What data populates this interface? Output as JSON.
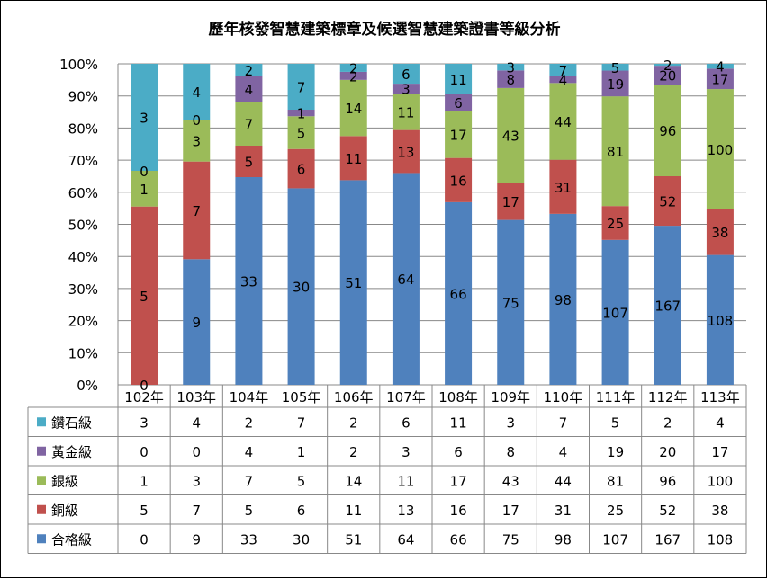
{
  "chart_data": {
    "type": "bar",
    "stacked": "percent",
    "title": "歷年核發智慧建築標章及候選智慧建築證書等級分析",
    "categories": [
      "102年",
      "103年",
      "104年",
      "105年",
      "106年",
      "107年",
      "108年",
      "109年",
      "110年",
      "111年",
      "112年",
      "113年"
    ],
    "series": [
      {
        "name": "合格級",
        "color": "#4f81bd",
        "values": [
          0,
          9,
          33,
          30,
          51,
          64,
          66,
          75,
          98,
          107,
          167,
          108
        ]
      },
      {
        "name": "銅級",
        "color": "#c0504d",
        "values": [
          5,
          7,
          5,
          6,
          11,
          13,
          16,
          17,
          31,
          25,
          52,
          38
        ]
      },
      {
        "name": "銀級",
        "color": "#9bbb59",
        "values": [
          1,
          3,
          7,
          5,
          14,
          11,
          17,
          43,
          44,
          81,
          96,
          100
        ]
      },
      {
        "name": "黃金級",
        "color": "#8064a2",
        "values": [
          0,
          0,
          4,
          1,
          2,
          3,
          6,
          8,
          4,
          19,
          20,
          17
        ]
      },
      {
        "name": "鑽石級",
        "color": "#4bacc6",
        "values": [
          3,
          4,
          2,
          7,
          2,
          6,
          11,
          3,
          7,
          5,
          2,
          4
        ]
      }
    ],
    "table_order": [
      "鑽石級",
      "黃金級",
      "銀級",
      "銅級",
      "合格級"
    ],
    "yticks": [
      "0%",
      "10%",
      "20%",
      "30%",
      "40%",
      "50%",
      "60%",
      "70%",
      "80%",
      "90%",
      "100%"
    ],
    "ylim": [
      0,
      100
    ],
    "grid": true,
    "legend": "data-table"
  }
}
